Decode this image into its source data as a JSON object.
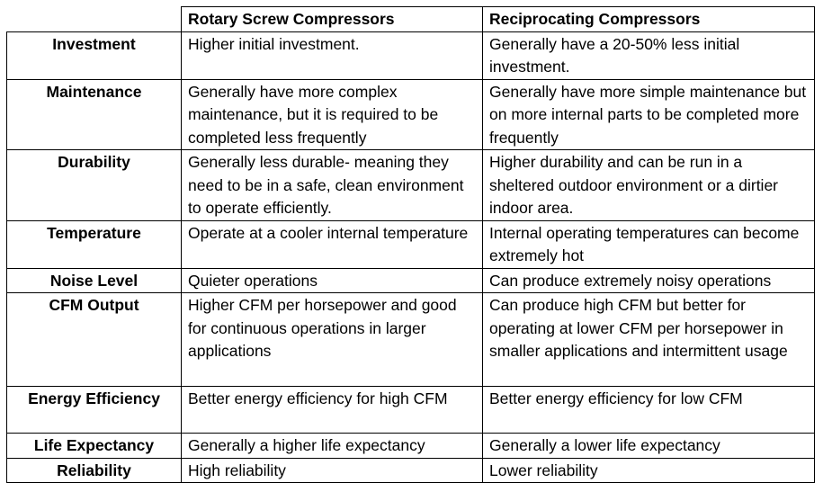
{
  "table": {
    "headers": [
      "",
      "Rotary Screw Compressors",
      "Reciprocating Compressors"
    ],
    "rows": [
      {
        "label": "Investment",
        "rotary": "Higher initial investment.",
        "reciprocating": "Generally have a 20-50% less initial investment."
      },
      {
        "label": "Maintenance",
        "rotary": "Generally have more complex maintenance, but it is required to be completed less frequently",
        "reciprocating": "Generally have more simple maintenance but on more internal parts to be completed more frequently"
      },
      {
        "label": "Durability",
        "rotary": "Generally less durable- meaning they need to be in a safe, clean environment to operate efficiently.",
        "reciprocating": "Higher durability and can be run in a sheltered outdoor environment or a dirtier indoor area."
      },
      {
        "label": "Temperature",
        "rotary": "Operate at a cooler internal temperature",
        "reciprocating": "Internal operating temperatures can become extremely hot"
      },
      {
        "label": "Noise Level",
        "rotary": "Quieter operations",
        "reciprocating": "Can produce extremely noisy operations"
      },
      {
        "label": "CFM Output",
        "rotary": "Higher CFM per horsepower and good for continuous operations in larger applications",
        "reciprocating": "Can produce high CFM but better for operating at lower CFM per horsepower in smaller applications and intermittent usage"
      },
      {
        "label": "Energy Efficiency",
        "rotary": "Better energy efficiency for high CFM",
        "reciprocating": "Better energy efficiency for low CFM"
      },
      {
        "label": "Life Expectancy",
        "rotary": "Generally a higher life expectancy",
        "reciprocating": "Generally a lower life expectancy"
      },
      {
        "label": "Reliability",
        "rotary": "High reliability",
        "reciprocating": "Lower reliability"
      }
    ]
  }
}
